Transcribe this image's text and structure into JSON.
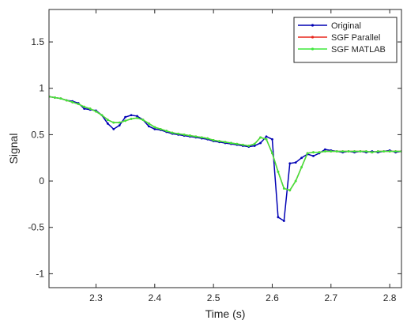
{
  "chart_data": {
    "type": "line",
    "x_label": "Time (s)",
    "y_label": "Signal",
    "x": [
      2.22,
      2.23,
      2.24,
      2.25,
      2.26,
      2.27,
      2.28,
      2.29,
      2.3,
      2.31,
      2.32,
      2.33,
      2.34,
      2.35,
      2.36,
      2.37,
      2.38,
      2.39,
      2.4,
      2.41,
      2.42,
      2.43,
      2.44,
      2.45,
      2.46,
      2.47,
      2.48,
      2.49,
      2.5,
      2.51,
      2.52,
      2.53,
      2.54,
      2.55,
      2.56,
      2.57,
      2.58,
      2.59,
      2.6,
      2.61,
      2.62,
      2.63,
      2.64,
      2.65,
      2.66,
      2.67,
      2.68,
      2.69,
      2.7,
      2.71,
      2.72,
      2.73,
      2.74,
      2.75,
      2.76,
      2.77,
      2.78,
      2.79,
      2.8,
      2.81,
      2.82
    ],
    "series": [
      {
        "name": "Original",
        "color": "#0000b4",
        "values": [
          0.91,
          0.9,
          0.89,
          0.87,
          0.86,
          0.84,
          0.78,
          0.77,
          0.76,
          0.71,
          0.62,
          0.56,
          0.6,
          0.69,
          0.71,
          0.7,
          0.66,
          0.59,
          0.56,
          0.55,
          0.53,
          0.51,
          0.5,
          0.49,
          0.48,
          0.47,
          0.46,
          0.45,
          0.43,
          0.42,
          0.41,
          0.4,
          0.39,
          0.38,
          0.37,
          0.38,
          0.41,
          0.48,
          0.45,
          -0.39,
          -0.43,
          0.19,
          0.2,
          0.25,
          0.29,
          0.27,
          0.3,
          0.34,
          0.33,
          0.32,
          0.31,
          0.32,
          0.31,
          0.32,
          0.31,
          0.32,
          0.31,
          0.32,
          0.33,
          0.31,
          0.32
        ]
      },
      {
        "name": "SGF Parallel",
        "color": "#e8261c",
        "values": [
          0.91,
          0.9,
          0.89,
          0.87,
          0.85,
          0.83,
          0.8,
          0.78,
          0.75,
          0.71,
          0.66,
          0.63,
          0.63,
          0.65,
          0.67,
          0.68,
          0.66,
          0.62,
          0.58,
          0.56,
          0.54,
          0.52,
          0.51,
          0.5,
          0.49,
          0.48,
          0.47,
          0.46,
          0.44,
          0.43,
          0.42,
          0.41,
          0.4,
          0.39,
          0.38,
          0.4,
          0.47,
          0.45,
          0.3,
          0.1,
          -0.08,
          -0.1,
          0.0,
          0.15,
          0.3,
          0.31,
          0.31,
          0.32,
          0.32,
          0.32,
          0.32,
          0.32,
          0.32,
          0.32,
          0.32,
          0.31,
          0.32,
          0.32,
          0.32,
          0.32,
          0.32
        ]
      },
      {
        "name": "SGF MATLAB",
        "color": "#3ee83a",
        "values": [
          0.91,
          0.9,
          0.89,
          0.87,
          0.85,
          0.83,
          0.8,
          0.78,
          0.75,
          0.71,
          0.66,
          0.63,
          0.63,
          0.65,
          0.67,
          0.68,
          0.66,
          0.62,
          0.58,
          0.56,
          0.54,
          0.52,
          0.51,
          0.5,
          0.49,
          0.48,
          0.47,
          0.46,
          0.44,
          0.43,
          0.42,
          0.41,
          0.4,
          0.39,
          0.38,
          0.4,
          0.47,
          0.45,
          0.3,
          0.1,
          -0.08,
          -0.1,
          0.0,
          0.15,
          0.3,
          0.31,
          0.31,
          0.32,
          0.32,
          0.32,
          0.32,
          0.32,
          0.32,
          0.32,
          0.32,
          0.31,
          0.32,
          0.32,
          0.32,
          0.32,
          0.32
        ]
      }
    ],
    "xlim": [
      2.22,
      2.82
    ],
    "ylim": [
      -1.15,
      1.85
    ],
    "xticks": [
      2.3,
      2.4,
      2.5,
      2.6,
      2.7,
      2.8
    ],
    "yticks": [
      -1,
      -0.5,
      0,
      0.5,
      1,
      1.5
    ],
    "legend": "upper right",
    "grid": false
  }
}
